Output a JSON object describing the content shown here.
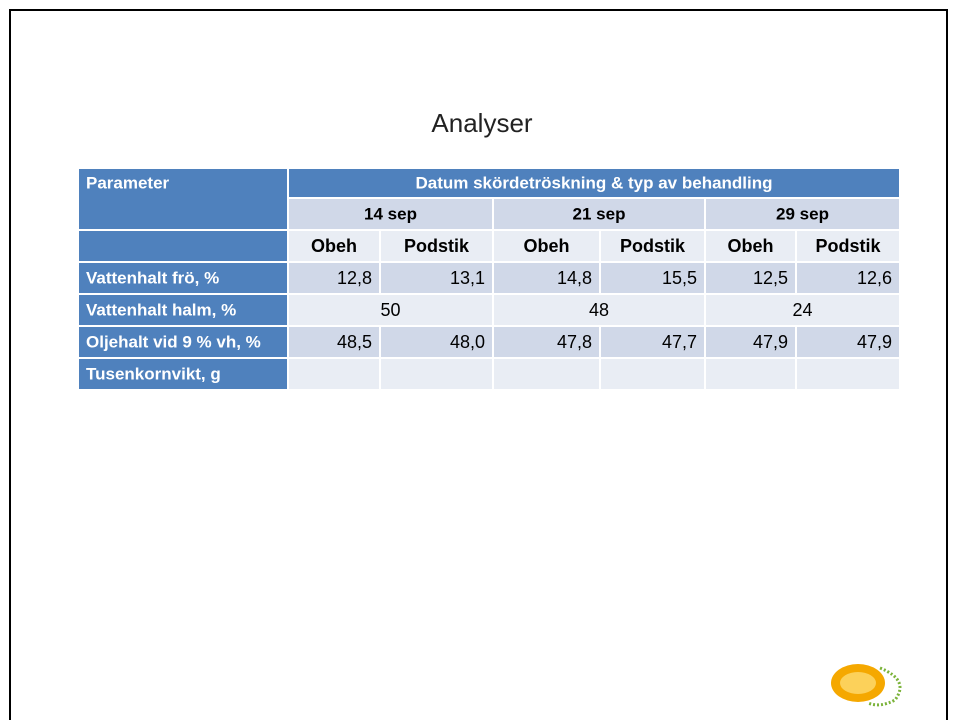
{
  "header": {
    "title": "Analyser"
  },
  "table": {
    "parameter_header": "Parameter",
    "group_header": "Datum skördetröskning & typ av behandling",
    "dates": [
      "14 sep",
      "21 sep",
      "29 sep"
    ],
    "subheaders": [
      "Obeh",
      "Podstik",
      "Obeh",
      "Podstik",
      "Obeh",
      "Podstik"
    ],
    "rows": [
      {
        "label": "Vattenhalt frö, %",
        "values": [
          "12,8",
          "13,1",
          "14,8",
          "15,5",
          "12,5",
          "12,6"
        ]
      },
      {
        "label": "Vattenhalt halm, %",
        "merged_values": [
          "50",
          "48",
          "24"
        ]
      },
      {
        "label": "Oljehalt vid 9 % vh, %",
        "values": [
          "48,5",
          "48,0",
          "47,8",
          "47,7",
          "47,9",
          "47,9"
        ]
      },
      {
        "label": "Tusenkornvikt, g",
        "values": []
      }
    ]
  }
}
